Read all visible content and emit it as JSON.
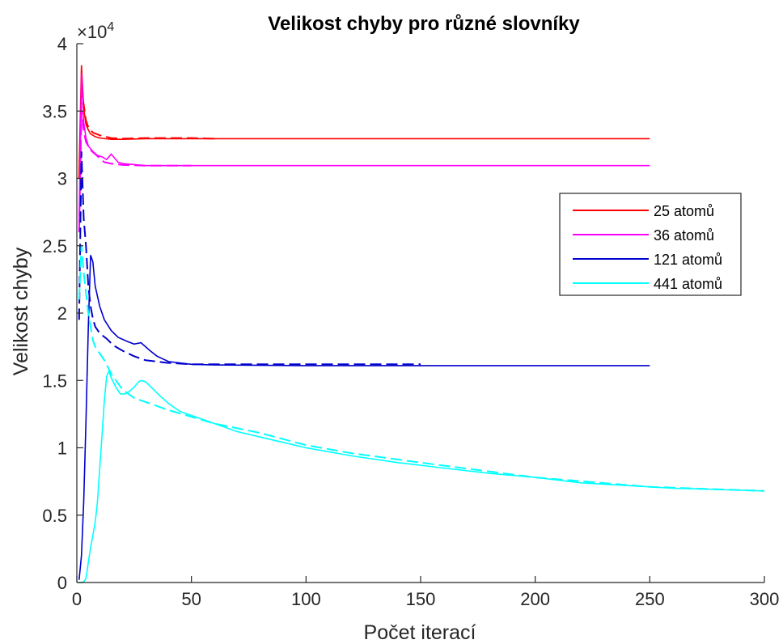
{
  "chart_data": {
    "type": "line",
    "title": "Velikost chyby pro různé slovníky",
    "xlabel": "Počet iterací",
    "ylabel": "Velikost chyby",
    "xlim": [
      0,
      300
    ],
    "ylim": [
      0,
      40000
    ],
    "x_ticks": [
      "0",
      "50",
      "100",
      "150",
      "200",
      "250",
      "300"
    ],
    "y_ticks": [
      "0",
      "0.5",
      "1",
      "1.5",
      "2",
      "2.5",
      "3",
      "3.5",
      "4"
    ],
    "y_exponent_base": "×10",
    "y_exponent_power": "4",
    "grid": false,
    "legend_position": "right",
    "series": [
      {
        "name": "25 atomů",
        "color": "#ff0000",
        "solid": [
          [
            1,
            30500
          ],
          [
            2,
            38400
          ],
          [
            3,
            35200
          ],
          [
            4,
            34000
          ],
          [
            5,
            33600
          ],
          [
            6,
            33300
          ],
          [
            8,
            33100
          ],
          [
            10,
            33000
          ],
          [
            15,
            32900
          ],
          [
            20,
            32900
          ],
          [
            30,
            32950
          ],
          [
            50,
            32950
          ],
          [
            100,
            32950
          ],
          [
            250,
            32950
          ]
        ],
        "dashed": [
          [
            1,
            30000
          ],
          [
            2,
            36500
          ],
          [
            3,
            35500
          ],
          [
            4,
            34300
          ],
          [
            5,
            33800
          ],
          [
            7,
            33400
          ],
          [
            10,
            33200
          ],
          [
            15,
            33000
          ],
          [
            20,
            32950
          ],
          [
            30,
            33000
          ],
          [
            50,
            33000
          ],
          [
            60,
            32950
          ]
        ]
      },
      {
        "name": "36 atomů",
        "color": "#ff00ff",
        "solid": [
          [
            1,
            26500
          ],
          [
            2,
            37800
          ],
          [
            3,
            34200
          ],
          [
            4,
            33000
          ],
          [
            5,
            32400
          ],
          [
            7,
            32000
          ],
          [
            9,
            31700
          ],
          [
            11,
            31600
          ],
          [
            13,
            31400
          ],
          [
            15,
            31800
          ],
          [
            18,
            31200
          ],
          [
            20,
            31100
          ],
          [
            30,
            30950
          ],
          [
            50,
            30950
          ],
          [
            250,
            30950
          ]
        ],
        "dashed": [
          [
            1,
            26000
          ],
          [
            2,
            35000
          ],
          [
            3,
            33500
          ],
          [
            4,
            32700
          ],
          [
            6,
            32100
          ],
          [
            8,
            31800
          ],
          [
            10,
            31500
          ],
          [
            12,
            31200
          ],
          [
            15,
            31100
          ],
          [
            20,
            31000
          ],
          [
            30,
            30950
          ],
          [
            50,
            30950
          ]
        ]
      },
      {
        "name": "121 atomů",
        "color": "#0000cc",
        "solid": [
          [
            1,
            200
          ],
          [
            2,
            2000
          ],
          [
            3,
            6000
          ],
          [
            4,
            12000
          ],
          [
            5,
            19000
          ],
          [
            6,
            24300
          ],
          [
            7,
            23800
          ],
          [
            8,
            22000
          ],
          [
            10,
            20500
          ],
          [
            12,
            19500
          ],
          [
            15,
            18700
          ],
          [
            18,
            18200
          ],
          [
            22,
            17900
          ],
          [
            25,
            17700
          ],
          [
            28,
            17800
          ],
          [
            32,
            17200
          ],
          [
            35,
            16800
          ],
          [
            40,
            16400
          ],
          [
            50,
            16200
          ],
          [
            60,
            16150
          ],
          [
            100,
            16100
          ],
          [
            150,
            16100
          ],
          [
            250,
            16100
          ]
        ],
        "dashed": [
          [
            1,
            19500
          ],
          [
            2,
            32000
          ],
          [
            3,
            27000
          ],
          [
            4,
            25000
          ],
          [
            5,
            22000
          ],
          [
            6,
            20500
          ],
          [
            7,
            19600
          ],
          [
            8,
            19000
          ],
          [
            10,
            18500
          ],
          [
            13,
            18100
          ],
          [
            16,
            17600
          ],
          [
            20,
            17200
          ],
          [
            25,
            16800
          ],
          [
            30,
            16500
          ],
          [
            40,
            16300
          ],
          [
            50,
            16200
          ],
          [
            100,
            16200
          ],
          [
            150,
            16200
          ]
        ]
      },
      {
        "name": "441 atomů",
        "color": "#00ffff",
        "solid": [
          [
            1,
            0
          ],
          [
            2,
            0
          ],
          [
            3,
            50
          ],
          [
            4,
            300
          ],
          [
            5,
            1500
          ],
          [
            6,
            2600
          ],
          [
            7,
            3500
          ],
          [
            8,
            4500
          ],
          [
            9,
            6000
          ],
          [
            10,
            8500
          ],
          [
            11,
            11000
          ],
          [
            12,
            13500
          ],
          [
            13,
            15300
          ],
          [
            14,
            15700
          ],
          [
            15,
            15200
          ],
          [
            17,
            14500
          ],
          [
            19,
            14000
          ],
          [
            21,
            14000
          ],
          [
            23,
            14200
          ],
          [
            25,
            14500
          ],
          [
            27,
            14900
          ],
          [
            28,
            15000
          ],
          [
            30,
            14900
          ],
          [
            33,
            14400
          ],
          [
            36,
            13900
          ],
          [
            40,
            13300
          ],
          [
            45,
            12700
          ],
          [
            50,
            12400
          ],
          [
            60,
            11800
          ],
          [
            70,
            11200
          ],
          [
            80,
            10800
          ],
          [
            90,
            10400
          ],
          [
            100,
            10000
          ],
          [
            120,
            9400
          ],
          [
            140,
            8900
          ],
          [
            160,
            8500
          ],
          [
            180,
            8100
          ],
          [
            200,
            7800
          ],
          [
            220,
            7400
          ],
          [
            240,
            7200
          ],
          [
            260,
            7000
          ],
          [
            280,
            6900
          ],
          [
            300,
            6800
          ]
        ],
        "dashed": [
          [
            1,
            21000
          ],
          [
            2,
            25000
          ],
          [
            3,
            23000
          ],
          [
            4,
            21500
          ],
          [
            5,
            20000
          ],
          [
            6,
            19000
          ],
          [
            7,
            18000
          ],
          [
            8,
            17500
          ],
          [
            10,
            17000
          ],
          [
            12,
            16500
          ],
          [
            15,
            15500
          ],
          [
            20,
            14300
          ],
          [
            25,
            13700
          ],
          [
            30,
            13400
          ],
          [
            35,
            13100
          ],
          [
            40,
            12800
          ],
          [
            50,
            12300
          ],
          [
            60,
            11800
          ],
          [
            80,
            11100
          ],
          [
            100,
            10200
          ],
          [
            120,
            9600
          ],
          [
            150,
            8900
          ],
          [
            200,
            7800
          ],
          [
            250,
            7100
          ],
          [
            300,
            6800
          ]
        ]
      }
    ]
  }
}
